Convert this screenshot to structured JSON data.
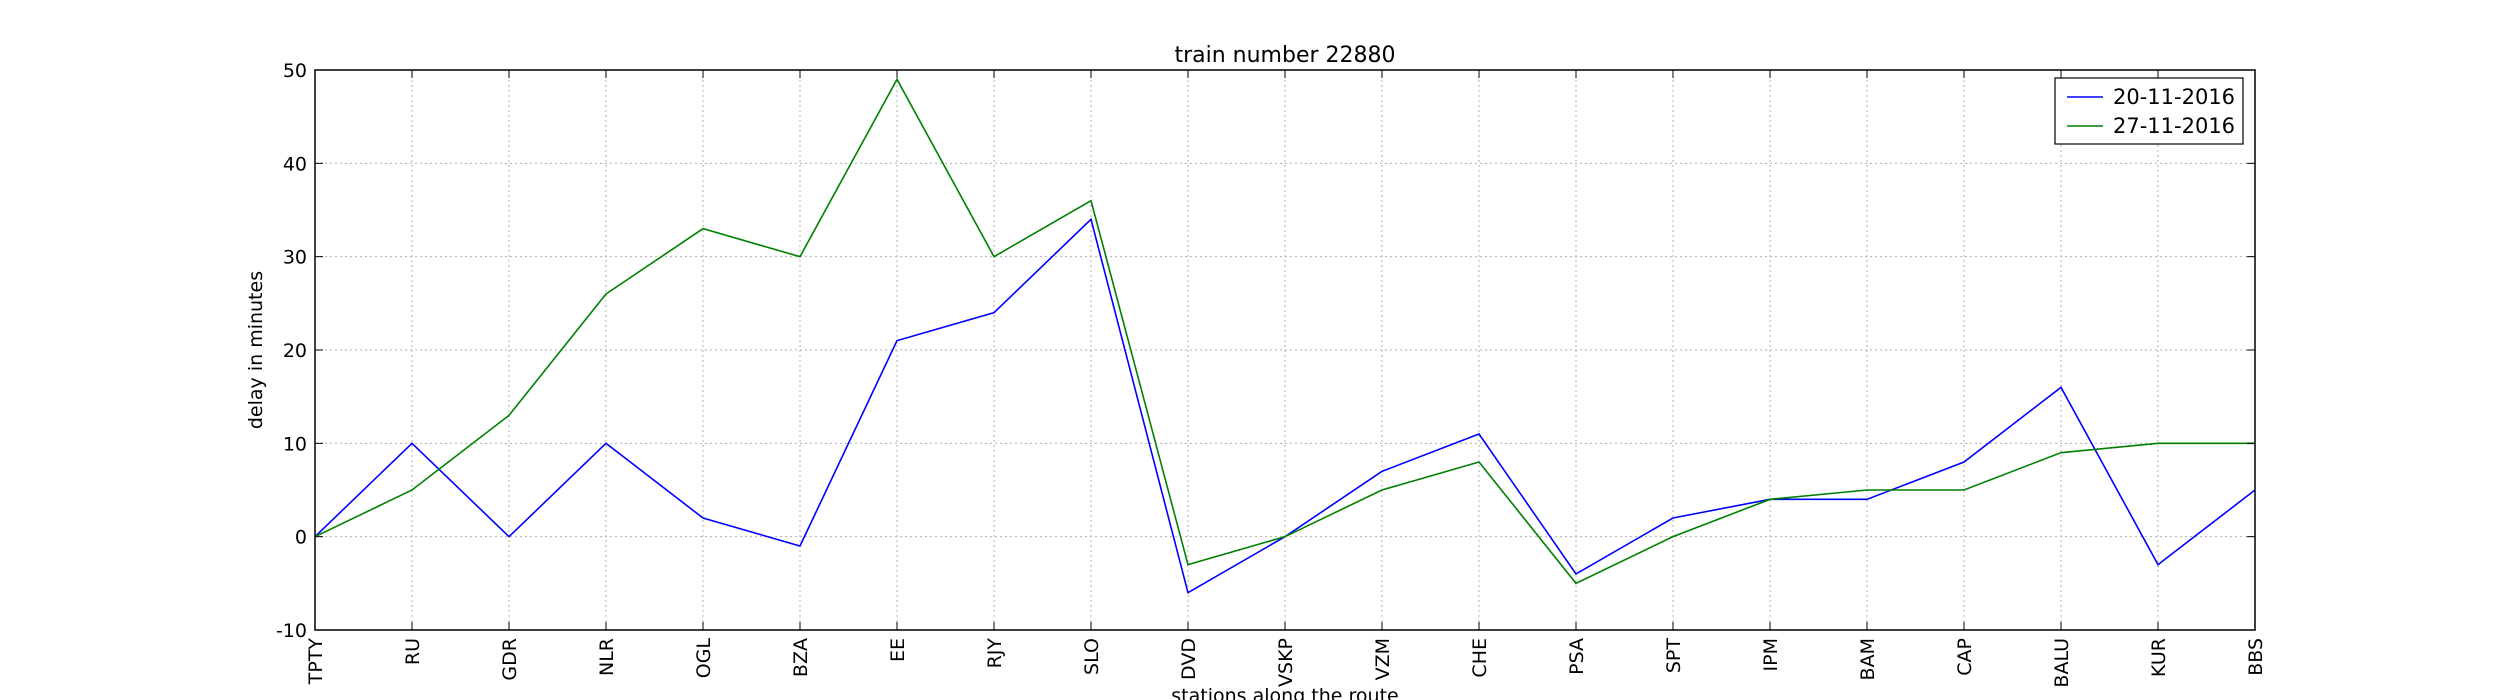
{
  "chart_data": {
    "type": "line",
    "title": "train number 22880",
    "xlabel": "stations along the route",
    "ylabel": "delay in minutes",
    "categories": [
      "TPTY",
      "RU",
      "GDR",
      "NLR",
      "OGL",
      "BZA",
      "EE",
      "RJY",
      "SLO",
      "DVD",
      "VSKP",
      "VZM",
      "CHE",
      "PSA",
      "SPT",
      "IPM",
      "BAM",
      "CAP",
      "BALU",
      "KUR",
      "BBS"
    ],
    "ylim": [
      -10,
      50
    ],
    "yticks": [
      -10,
      0,
      10,
      20,
      30,
      40,
      50
    ],
    "grid": true,
    "legend_position": "top-right",
    "series": [
      {
        "name": "20-11-2016",
        "color": "#0000ff",
        "values": [
          0,
          10,
          0,
          10,
          2,
          -1,
          21,
          24,
          34,
          -6,
          0,
          7,
          11,
          -4,
          2,
          4,
          4,
          8,
          16,
          -3,
          5
        ]
      },
      {
        "name": "27-11-2016",
        "color": "#008000",
        "values": [
          0,
          5,
          13,
          26,
          33,
          30,
          49,
          30,
          36,
          -3,
          0,
          5,
          8,
          -5,
          0,
          4,
          5,
          5,
          9,
          10,
          10
        ]
      }
    ]
  }
}
